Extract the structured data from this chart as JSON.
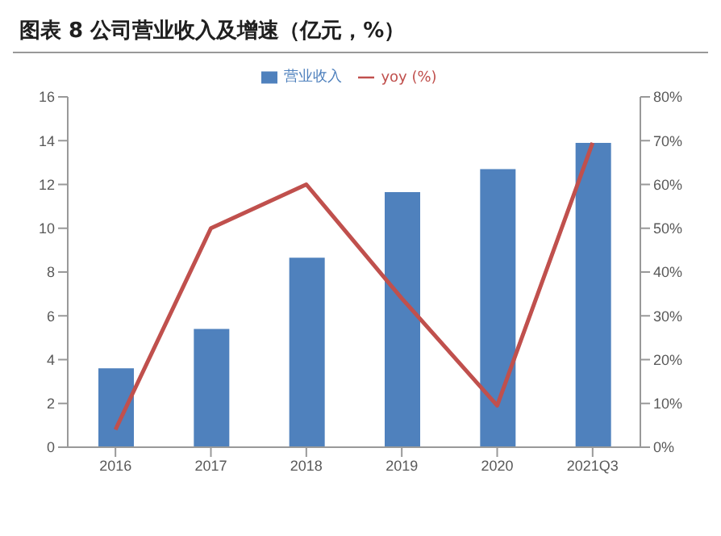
{
  "chart_data": {
    "type": "bar",
    "title": "图表 8 公司营业收入及增速（亿元，%）",
    "categories": [
      "2016",
      "2017",
      "2018",
      "2019",
      "2020",
      "2021Q3"
    ],
    "series": [
      {
        "name": "营业收入",
        "color": "#4f81bd",
        "values": [
          3.6,
          5.4,
          8.65,
          11.65,
          12.7,
          13.9
        ]
      },
      {
        "name": "yoy (%)",
        "type": "line",
        "color": "#c0504d",
        "axis": "y2",
        "marker": "none",
        "values": [
          4,
          50,
          60,
          34,
          9.5,
          69.5
        ]
      }
    ],
    "ylim": [
      0,
      16
    ],
    "yticks": [
      0,
      2,
      4,
      6,
      8,
      10,
      12,
      14,
      16
    ],
    "y2lim": [
      0,
      80
    ],
    "y2ticks": [
      {
        "value": 0,
        "label": "0%"
      },
      {
        "value": 10,
        "label": "10%"
      },
      {
        "value": 20,
        "label": "20%"
      },
      {
        "value": 30,
        "label": "30%"
      },
      {
        "value": 40,
        "label": "40%"
      },
      {
        "value": 50,
        "label": "50%"
      },
      {
        "value": 60,
        "label": "60%"
      },
      {
        "value": 70,
        "label": "70%"
      },
      {
        "value": 80,
        "label": "80%"
      }
    ],
    "grid": false,
    "legend": "top"
  }
}
